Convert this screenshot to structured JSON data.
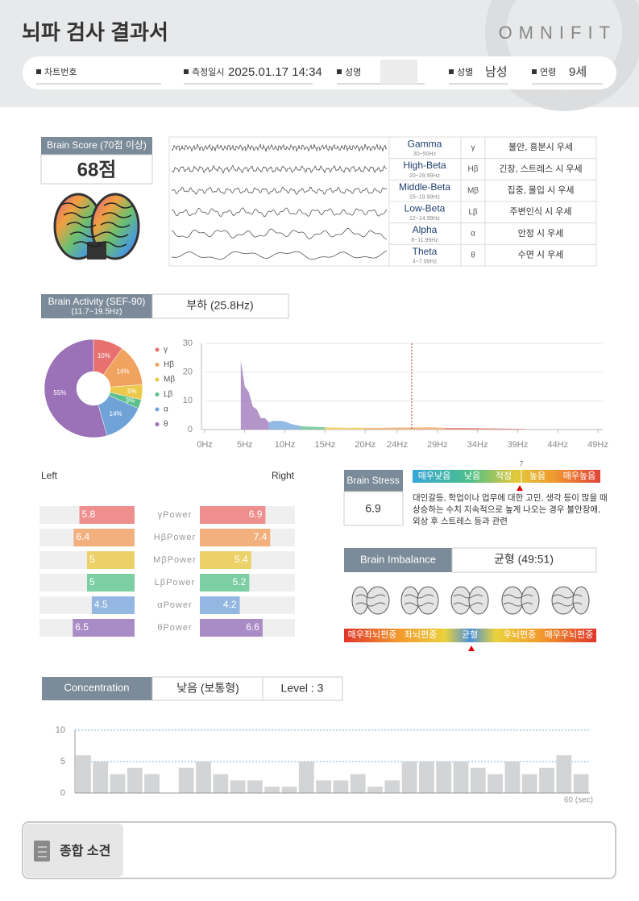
{
  "header": {
    "title": "뇌파 검사 결과서",
    "brand": "OMNIFIT",
    "fields": [
      {
        "label": "차트번호"
      },
      {
        "label": "측정일시",
        "value": "2025.01.17 14:34"
      },
      {
        "label": "성명"
      },
      {
        "label": "성별",
        "value": "남성"
      },
      {
        "label": "연령",
        "value": "9세"
      }
    ]
  },
  "brain_score": {
    "label": "Brain Score (70점 이상)",
    "value": "68점"
  },
  "wave_table": {
    "rows": [
      {
        "name": "Gamma",
        "range": "30~50Hz",
        "symbol": "γ",
        "description": "불안, 흥분시 우세"
      },
      {
        "name": "High-Beta",
        "range": "20~29.99Hz",
        "symbol": "Hβ",
        "description": "긴장, 스트레스 시 우세"
      },
      {
        "name": "Middle-Beta",
        "range": "15~19.99Hz",
        "symbol": "Mβ",
        "description": "집중, 몰입 시 우세"
      },
      {
        "name": "Low-Beta",
        "range": "12~14.99Hz",
        "symbol": "Lβ",
        "description": "주변인식 시 우세"
      },
      {
        "name": "Alpha",
        "range": "8~11.99Hz",
        "symbol": "α",
        "description": "안정 시 우세"
      },
      {
        "name": "Theta",
        "range": "4~7.99Hz",
        "symbol": "θ",
        "description": "수면 시 우세"
      }
    ]
  },
  "brain_activity": {
    "label": "Brain Activity (SEF-90)",
    "sublabel": "(11.7~19.5Hz)",
    "result": "부하 (25.8Hz)"
  },
  "brain_stress": {
    "label": "Brain Stress",
    "value": "6.9",
    "scale_labels": [
      "매우낮음",
      "낮음",
      "적정",
      "높음",
      "매우높음"
    ],
    "scale_tick": "7",
    "description": [
      "대인갈등, 학업이나 업무에 대한 고민, 생각 등이 많을 때",
      "상승하는 수치 지속적으로 높게 나오는 경우 불안장애,",
      "외상 후 스트레스 등과 관련"
    ]
  },
  "brain_imbalance": {
    "label": "Brain Imbalance",
    "result": "균형 (49:51)",
    "scale_labels": [
      "매우좌뇌편중",
      "좌뇌편중",
      "균형",
      "우뇌편중",
      "매우우뇌편중"
    ]
  },
  "concentration": {
    "label": "Concentration",
    "result": "낮음 (보통형)",
    "level": "Level : 3"
  },
  "summary": {
    "title": "종합 소견"
  },
  "chart_data": [
    {
      "type": "pie",
      "categories": [
        "γ",
        "Hβ",
        "Mβ",
        "Lβ",
        "α",
        "θ"
      ],
      "values": [
        10,
        14,
        5,
        3,
        14,
        55
      ],
      "value_labels": [
        "10%",
        "14%",
        "5%",
        "3%",
        "14%",
        "55%"
      ],
      "colors": [
        "#e8716f",
        "#f0a35e",
        "#ecc94b",
        "#5cc08a",
        "#6fa3d8",
        "#9b72b8"
      ]
    },
    {
      "type": "area",
      "xlim": [
        0,
        49
      ],
      "ylim": [
        0,
        30
      ],
      "xticks": [
        {
          "value": 0,
          "label": "0Hz"
        },
        {
          "value": 5,
          "label": "5Hz"
        },
        {
          "value": 10,
          "label": "10Hz"
        },
        {
          "value": 15,
          "label": "15Hz"
        },
        {
          "value": 20,
          "label": "20Hz"
        },
        {
          "value": 24,
          "label": "24Hz"
        },
        {
          "value": 29,
          "label": "29Hz"
        },
        {
          "value": 34,
          "label": "34Hz"
        },
        {
          "value": 39,
          "label": "39Hz"
        },
        {
          "value": 44,
          "label": "44Hz"
        },
        {
          "value": 49,
          "label": "49Hz"
        }
      ],
      "yticks": [
        0,
        10,
        20,
        30
      ],
      "grid": true,
      "reference_x": 25.8,
      "series": [
        {
          "color": "#9b72b8",
          "x": [
            4.5,
            5,
            5.5,
            6,
            6.5,
            7,
            7.5,
            8
          ],
          "values": [
            24,
            15,
            13,
            8,
            7,
            4,
            4,
            2.5
          ]
        },
        {
          "color": "#6fa3d8",
          "x": [
            8,
            8.5,
            9,
            9.5,
            10,
            10.5,
            11,
            11.5,
            12
          ],
          "values": [
            2.5,
            3,
            3,
            3,
            2.8,
            2.2,
            1.8,
            1.5,
            1.2
          ]
        },
        {
          "color": "#5cc08a",
          "x": [
            12,
            13,
            14,
            15
          ],
          "values": [
            1.2,
            1,
            0.9,
            0.8
          ]
        },
        {
          "color": "#ecc94b",
          "x": [
            15,
            16,
            17,
            18,
            19,
            20
          ],
          "values": [
            0.8,
            0.7,
            0.7,
            0.6,
            0.7,
            0.6
          ]
        },
        {
          "color": "#f0a35e",
          "x": [
            20,
            22,
            24,
            26,
            28,
            30
          ],
          "values": [
            0.6,
            0.6,
            0.7,
            0.7,
            0.8,
            0.6
          ]
        },
        {
          "color": "#e8716f",
          "x": [
            30,
            32,
            34,
            36,
            38,
            40
          ],
          "values": [
            0.6,
            0.6,
            0.5,
            0.4,
            0.3,
            0.2
          ]
        }
      ]
    },
    {
      "type": "mirror-bar",
      "categories": [
        "γPower",
        "HβPower",
        "MβPower",
        "LβPower",
        "αPower",
        "θPower"
      ],
      "colors": [
        "#ef8f8d",
        "#f2b07e",
        "#ecd068",
        "#7ccfa3",
        "#93b7e0",
        "#a98bc5"
      ],
      "xlim": [
        0,
        10
      ],
      "series": [
        {
          "name": "Left",
          "values": [
            5.8,
            6.4,
            5,
            5,
            4.5,
            6.5
          ]
        },
        {
          "name": "Right",
          "values": [
            6.9,
            7.4,
            5.4,
            5.2,
            4.2,
            6.6
          ]
        }
      ]
    },
    {
      "type": "bar",
      "values": [
        6,
        5,
        3,
        4,
        3,
        0,
        4,
        5,
        3,
        2,
        2,
        1,
        1,
        5,
        2,
        2,
        3,
        1,
        2,
        5,
        5,
        5,
        5,
        4,
        3,
        5,
        3,
        4,
        6,
        3
      ],
      "color": "#d3d4d6",
      "ylim": [
        0,
        10
      ],
      "yticks": [
        0,
        5,
        10
      ],
      "grid": true,
      "x_label": "60 (sec)"
    }
  ]
}
